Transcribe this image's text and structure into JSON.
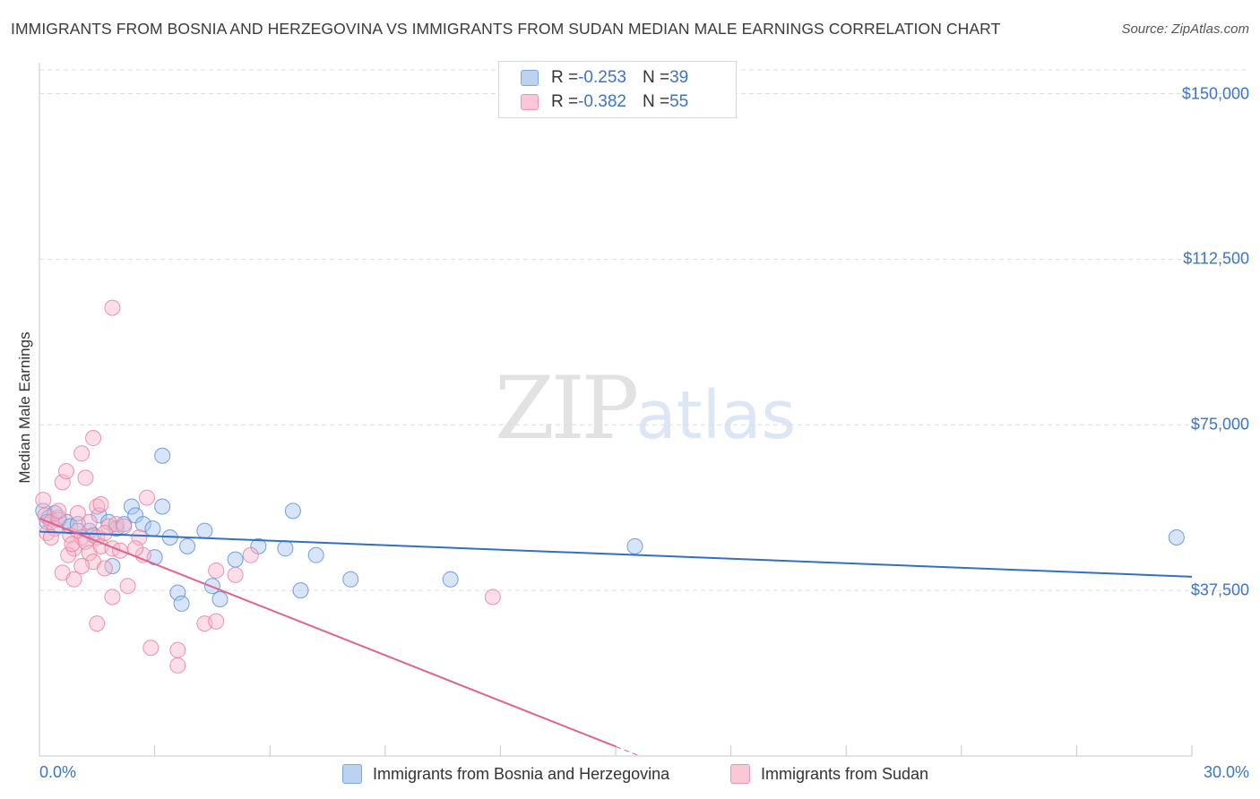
{
  "header": {
    "title": "IMMIGRANTS FROM BOSNIA AND HERZEGOVINA VS IMMIGRANTS FROM SUDAN MEDIAN MALE EARNINGS CORRELATION CHART",
    "source": "Source: ZipAtlas.com"
  },
  "watermark": {
    "zip": "ZIP",
    "atlas": "atlas"
  },
  "legend": {
    "rows": [
      {
        "r_label": "R = ",
        "r_value": "-0.253",
        "n_label": "N = ",
        "n_value": "39"
      },
      {
        "r_label": "R = ",
        "r_value": "-0.382",
        "n_label": "N = ",
        "n_value": "55"
      }
    ]
  },
  "colors": {
    "blue_fill": "#a9c6ef",
    "blue_stroke": "#5b8fd6",
    "blue_line": "#2f6fcd",
    "pink_fill": "#f6b5c9",
    "pink_stroke": "#e9819f",
    "pink_line": "#e2628e",
    "grid": "#dddddd",
    "axis": "#c8c8c8",
    "tick_text": "#3b74c8"
  },
  "chart_data": {
    "type": "scatter",
    "title": "IMMIGRANTS FROM BOSNIA AND HERZEGOVINA VS IMMIGRANTS FROM SUDAN MEDIAN MALE EARNINGS CORRELATION CHART",
    "xlabel": "",
    "ylabel": "Median Male Earnings",
    "xlim": [
      0,
      30
    ],
    "ylim": [
      0,
      157000
    ],
    "x_tick_labels": [
      "0.0%",
      "30.0%"
    ],
    "y_ticks": [
      {
        "value": 37500,
        "label": "$37,500"
      },
      {
        "value": 75000,
        "label": "$75,000"
      },
      {
        "value": 112500,
        "label": "$112,500"
      },
      {
        "value": 150000,
        "label": "$150,000"
      }
    ],
    "grid": true,
    "legend_position": "top-center",
    "series": [
      {
        "name": "Immigrants from Bosnia and Herzegovina",
        "color": "blue",
        "r": -0.253,
        "n": 39,
        "trend": {
          "x": [
            0,
            30
          ],
          "y": [
            50800,
            40600
          ],
          "dashed_from": null
        },
        "points": [
          {
            "x": 0.1,
            "y": 55500
          },
          {
            "x": 0.25,
            "y": 54000
          },
          {
            "x": 0.4,
            "y": 55000
          },
          {
            "x": 0.5,
            "y": 53500
          },
          {
            "x": 0.7,
            "y": 53000
          },
          {
            "x": 0.8,
            "y": 52000
          },
          {
            "x": 1.0,
            "y": 52500
          },
          {
            "x": 1.3,
            "y": 51000
          },
          {
            "x": 0.2,
            "y": 53000
          },
          {
            "x": 1.55,
            "y": 54500
          },
          {
            "x": 1.8,
            "y": 53000
          },
          {
            "x": 2.0,
            "y": 51500
          },
          {
            "x": 1.4,
            "y": 50000
          },
          {
            "x": 2.2,
            "y": 52500
          },
          {
            "x": 2.4,
            "y": 56500
          },
          {
            "x": 2.5,
            "y": 54500
          },
          {
            "x": 2.7,
            "y": 52500
          },
          {
            "x": 2.95,
            "y": 51500
          },
          {
            "x": 3.2,
            "y": 56500
          },
          {
            "x": 3.4,
            "y": 49500
          },
          {
            "x": 3.85,
            "y": 47500
          },
          {
            "x": 4.3,
            "y": 51000
          },
          {
            "x": 3.6,
            "y": 37000
          },
          {
            "x": 3.7,
            "y": 34500
          },
          {
            "x": 4.5,
            "y": 38500
          },
          {
            "x": 4.7,
            "y": 35500
          },
          {
            "x": 5.1,
            "y": 44500
          },
          {
            "x": 5.7,
            "y": 47500
          },
          {
            "x": 6.4,
            "y": 47000
          },
          {
            "x": 6.6,
            "y": 55500
          },
          {
            "x": 6.8,
            "y": 37500
          },
          {
            "x": 7.2,
            "y": 45500
          },
          {
            "x": 8.1,
            "y": 40000
          },
          {
            "x": 10.7,
            "y": 40000
          },
          {
            "x": 3.2,
            "y": 68000
          },
          {
            "x": 1.9,
            "y": 43000
          },
          {
            "x": 3.0,
            "y": 45000
          },
          {
            "x": 15.5,
            "y": 47500
          },
          {
            "x": 29.6,
            "y": 49500
          }
        ]
      },
      {
        "name": "Immigrants from Sudan",
        "color": "pink",
        "r": -0.382,
        "n": 55,
        "trend": {
          "x": [
            0,
            21
          ],
          "y": [
            53800,
            -18500
          ],
          "dashed_from": 15
        },
        "points": [
          {
            "x": 0.1,
            "y": 58000
          },
          {
            "x": 0.15,
            "y": 54500
          },
          {
            "x": 0.2,
            "y": 50500
          },
          {
            "x": 0.3,
            "y": 53000
          },
          {
            "x": 0.4,
            "y": 51500
          },
          {
            "x": 0.5,
            "y": 54000
          },
          {
            "x": 0.6,
            "y": 62000
          },
          {
            "x": 0.7,
            "y": 64500
          },
          {
            "x": 0.8,
            "y": 50000
          },
          {
            "x": 0.9,
            "y": 47000
          },
          {
            "x": 1.0,
            "y": 51000
          },
          {
            "x": 1.1,
            "y": 49500
          },
          {
            "x": 0.75,
            "y": 45500
          },
          {
            "x": 0.85,
            "y": 48000
          },
          {
            "x": 1.2,
            "y": 48500
          },
          {
            "x": 1.3,
            "y": 46000
          },
          {
            "x": 1.4,
            "y": 44000
          },
          {
            "x": 1.5,
            "y": 49500
          },
          {
            "x": 1.6,
            "y": 47500
          },
          {
            "x": 1.7,
            "y": 42500
          },
          {
            "x": 1.8,
            "y": 52000
          },
          {
            "x": 1.9,
            "y": 47000
          },
          {
            "x": 2.0,
            "y": 52500
          },
          {
            "x": 2.1,
            "y": 46500
          },
          {
            "x": 0.6,
            "y": 41500
          },
          {
            "x": 0.9,
            "y": 40000
          },
          {
            "x": 1.1,
            "y": 43000
          },
          {
            "x": 2.3,
            "y": 38500
          },
          {
            "x": 1.5,
            "y": 30000
          },
          {
            "x": 1.9,
            "y": 36000
          },
          {
            "x": 2.6,
            "y": 49500
          },
          {
            "x": 2.8,
            "y": 58500
          },
          {
            "x": 2.7,
            "y": 45500
          },
          {
            "x": 1.5,
            "y": 56500
          },
          {
            "x": 1.1,
            "y": 68500
          },
          {
            "x": 1.4,
            "y": 72000
          },
          {
            "x": 1.2,
            "y": 63000
          },
          {
            "x": 1.9,
            "y": 101500
          },
          {
            "x": 2.9,
            "y": 24500
          },
          {
            "x": 3.6,
            "y": 24000
          },
          {
            "x": 3.6,
            "y": 20500
          },
          {
            "x": 4.3,
            "y": 30000
          },
          {
            "x": 4.6,
            "y": 30500
          },
          {
            "x": 4.6,
            "y": 42000
          },
          {
            "x": 5.1,
            "y": 41000
          },
          {
            "x": 5.5,
            "y": 45500
          },
          {
            "x": 11.8,
            "y": 36000
          },
          {
            "x": 0.3,
            "y": 49500
          },
          {
            "x": 1.3,
            "y": 53000
          },
          {
            "x": 1.7,
            "y": 50500
          },
          {
            "x": 2.2,
            "y": 52000
          },
          {
            "x": 0.5,
            "y": 55500
          },
          {
            "x": 1.0,
            "y": 55000
          },
          {
            "x": 1.6,
            "y": 57000
          },
          {
            "x": 2.5,
            "y": 47000
          }
        ]
      }
    ]
  },
  "axes": {
    "y_label": "Median Male Earnings",
    "x_left_label": "0.0%",
    "x_right_label": "30.0%"
  },
  "bottom_legend": {
    "items": [
      {
        "label": "Immigrants from Bosnia and Herzegovina"
      },
      {
        "label": "Immigrants from Sudan"
      }
    ]
  }
}
